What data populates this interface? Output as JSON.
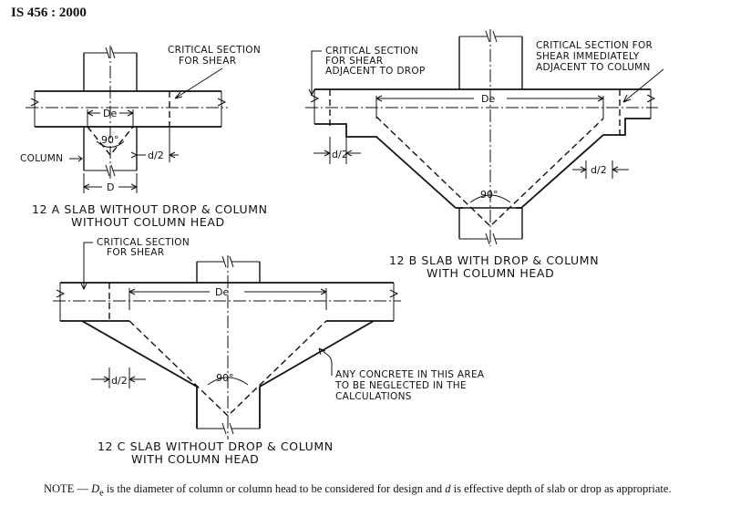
{
  "header": {
    "standard": "IS 456 : 2000"
  },
  "figure_a": {
    "callout": [
      "CRITICAL SECTION",
      "FOR SHEAR"
    ],
    "column_label": "COLUMN",
    "de_label": "De",
    "angle_label": "90°",
    "d2_label": "d/2",
    "d_label": "D",
    "caption": [
      "12 A  SLAB  WITHOUT  DROP & COLUMN",
      "WITHOUT COLUMN HEAD"
    ]
  },
  "figure_b": {
    "callout_left": [
      "CRITICAL SECTION",
      "FOR SHEAR",
      "ADJACENT TO DROP"
    ],
    "callout_right": [
      "CRITICAL SECTION FOR",
      "SHEAR IMMEDIATELY",
      "ADJACENT TO COLUMN"
    ],
    "de_label": "De",
    "angle_label": "90°",
    "d2_left_label": "d/2",
    "d2_right_label": "d/2",
    "caption": [
      "12 B  SLAB  WITH DROP & COLUMN",
      "WITH COLUMN HEAD"
    ]
  },
  "figure_c": {
    "callout": [
      "CRITICAL SECTION",
      "FOR SHEAR"
    ],
    "de_label": "De",
    "angle_label": "90°",
    "d2_label": "d/2",
    "note": [
      "ANY CONCRETE IN THIS AREA",
      "TO BE NEGLECTED IN THE",
      "CALCULATIONS"
    ],
    "caption": [
      "12 C  SLAB  WITHOUT  DROP & COLUMN",
      "WITH COLUMN HEAD"
    ]
  },
  "footnote": {
    "prefix": "NOTE — ",
    "de_symbol": "D",
    "de_subscript": "e",
    "text_1": " is the diameter of column or column head to be considered for design and ",
    "d_symbol": "d",
    "text_2": " is effective depth of slab or drop as appropriate."
  }
}
